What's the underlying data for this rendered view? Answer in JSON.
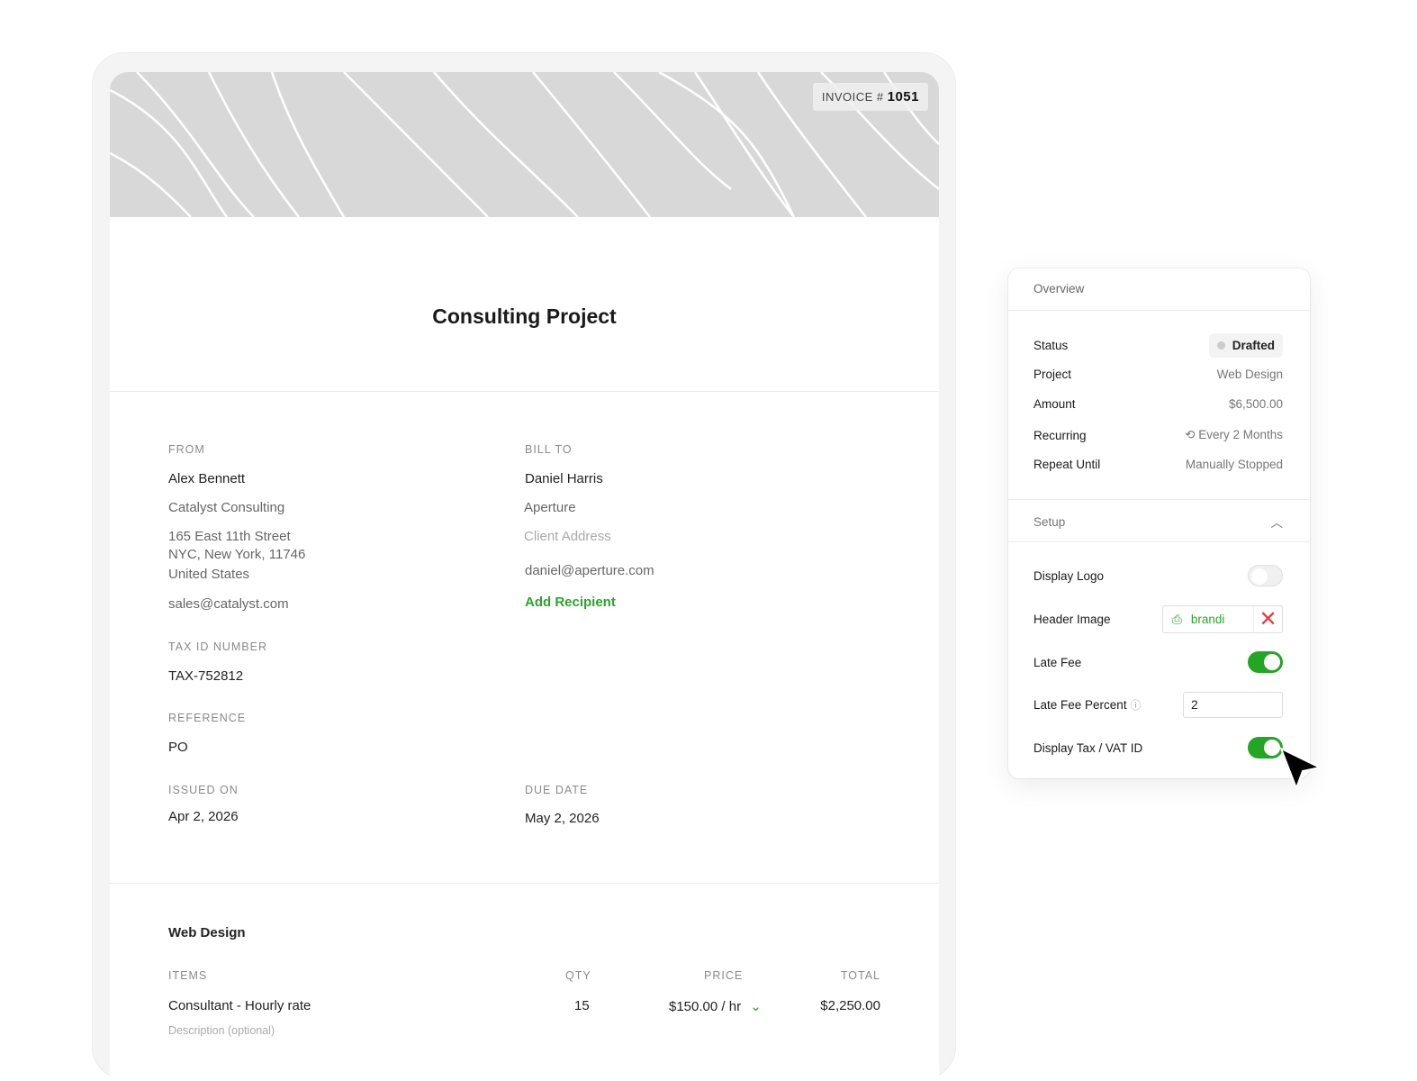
{
  "invoice": {
    "label": "INVOICE #",
    "number": "1051",
    "title": "Consulting Project"
  },
  "from": {
    "label": "FROM",
    "name": "Alex Bennett",
    "company": "Catalyst Consulting",
    "address1": "165 East 11th Street",
    "address2": "NYC, New York, 11746",
    "country": "United States",
    "email": "sales@catalyst.com"
  },
  "bill_to": {
    "label": "BILL TO",
    "name": "Daniel Harris",
    "company": "Aperture",
    "address_placeholder": "Client Address",
    "email": "daniel@aperture.com",
    "add_recipient": "Add Recipient"
  },
  "tax": {
    "label": "TAX ID NUMBER",
    "value": "TAX-752812"
  },
  "reference": {
    "label": "REFERENCE",
    "value": "PO"
  },
  "issued": {
    "label": "ISSUED ON",
    "value": "Apr 2, 2026"
  },
  "due": {
    "label": "DUE DATE",
    "value": "May 2, 2026"
  },
  "items": {
    "section": "Web Design",
    "headers": [
      "ITEMS",
      "QTY",
      "PRICE",
      "TOTAL"
    ],
    "rows": [
      {
        "name": "Consultant - Hourly rate",
        "description_placeholder": "Description (optional)",
        "qty": "15",
        "price": "$150.00 / hr",
        "total": "$2,250.00"
      }
    ]
  },
  "panel": {
    "overview": "Overview",
    "rows": [
      {
        "label": "Status",
        "value": "Drafted"
      },
      {
        "label": "Project",
        "value": "Web Design"
      },
      {
        "label": "Amount",
        "value": "$6,500.00"
      },
      {
        "label": "Recurring",
        "value": "Every 2 Months"
      },
      {
        "label": "Repeat Until",
        "value": "Manually Stopped"
      }
    ],
    "setup": "Setup",
    "display_logo": {
      "label": "Display Logo",
      "on": false
    },
    "header_image": {
      "label": "Header Image",
      "file": "brandi"
    },
    "late_fee": {
      "label": "Late Fee",
      "on": true
    },
    "late_fee_percent": {
      "label": "Late Fee Percent",
      "value": "2"
    },
    "display_tax": {
      "label": "Display Tax / VAT ID",
      "on": true
    }
  },
  "colors": {
    "accent": "#23a623",
    "remove": "#e53b3b"
  }
}
